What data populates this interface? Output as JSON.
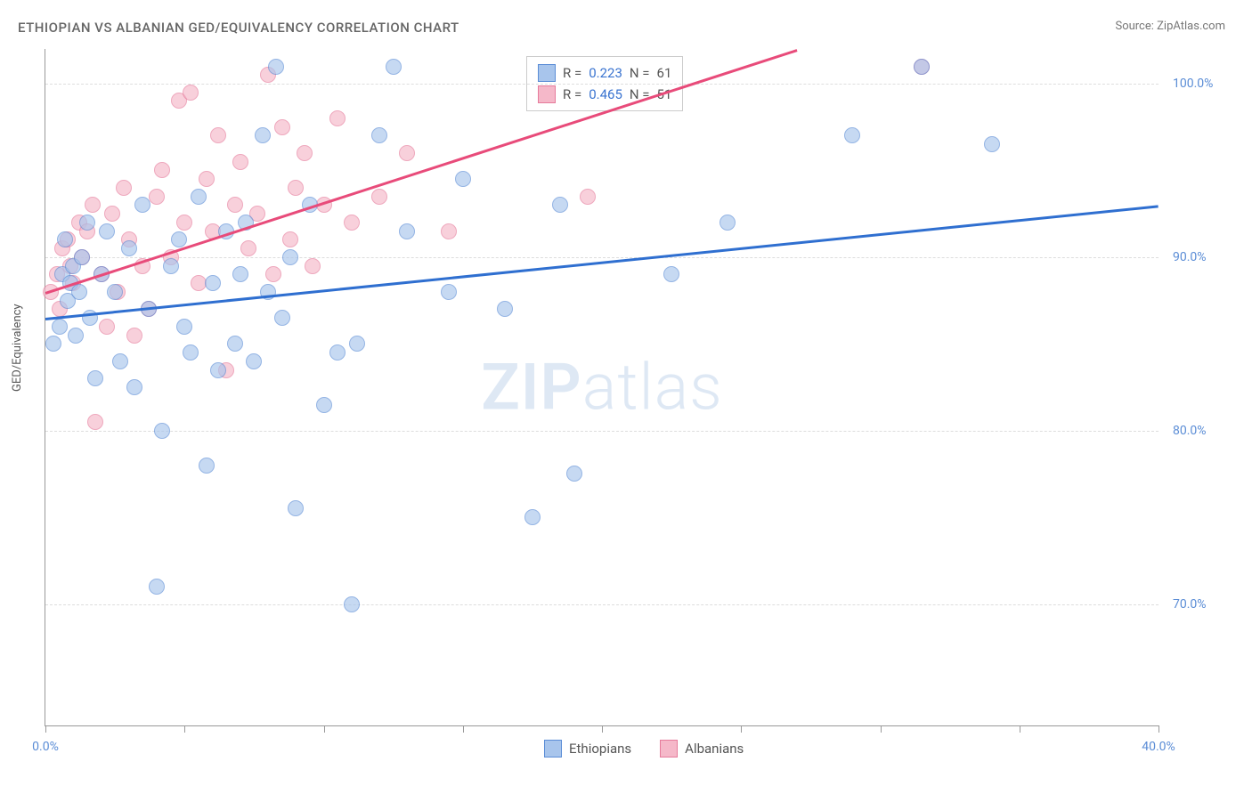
{
  "title": "ETHIOPIAN VS ALBANIAN GED/EQUIVALENCY CORRELATION CHART",
  "source": "Source: ZipAtlas.com",
  "ylabel": "GED/Equivalency",
  "watermark_bold": "ZIP",
  "watermark_light": "atlas",
  "xlim": [
    0,
    40
  ],
  "ylim": [
    63,
    102
  ],
  "xtick_positions": [
    0,
    5,
    10,
    15,
    20,
    25,
    30,
    35,
    40
  ],
  "xtick_labels": {
    "0": "0.0%",
    "40": "40.0%"
  },
  "ytick_positions": [
    70,
    80,
    90,
    100
  ],
  "ytick_labels": [
    "70.0%",
    "80.0%",
    "90.0%",
    "100.0%"
  ],
  "series": {
    "ethiopians": {
      "label": "Ethiopians",
      "fill": "#a8c5ec",
      "stroke": "#5b8dd6",
      "trend_color": "#2f6fd0",
      "trend": {
        "x1": 0,
        "y1": 86.5,
        "x2": 40,
        "y2": 93.0
      },
      "r": "0.223",
      "n": "61",
      "points": [
        [
          0.3,
          85.0
        ],
        [
          0.5,
          86.0
        ],
        [
          0.6,
          89.0
        ],
        [
          0.7,
          91.0
        ],
        [
          0.8,
          87.5
        ],
        [
          0.9,
          88.5
        ],
        [
          1.0,
          89.5
        ],
        [
          1.1,
          85.5
        ],
        [
          1.2,
          88.0
        ],
        [
          1.3,
          90.0
        ],
        [
          1.5,
          92.0
        ],
        [
          1.6,
          86.5
        ],
        [
          1.8,
          83.0
        ],
        [
          2.0,
          89.0
        ],
        [
          2.2,
          91.5
        ],
        [
          2.5,
          88.0
        ],
        [
          2.7,
          84.0
        ],
        [
          3.0,
          90.5
        ],
        [
          3.2,
          82.5
        ],
        [
          3.5,
          93.0
        ],
        [
          3.7,
          87.0
        ],
        [
          4.0,
          71.0
        ],
        [
          4.2,
          80.0
        ],
        [
          4.5,
          89.5
        ],
        [
          4.8,
          91.0
        ],
        [
          5.0,
          86.0
        ],
        [
          5.2,
          84.5
        ],
        [
          5.5,
          93.5
        ],
        [
          5.8,
          78.0
        ],
        [
          6.0,
          88.5
        ],
        [
          6.2,
          83.5
        ],
        [
          6.5,
          91.5
        ],
        [
          6.8,
          85.0
        ],
        [
          7.0,
          89.0
        ],
        [
          7.2,
          92.0
        ],
        [
          7.5,
          84.0
        ],
        [
          7.8,
          97.0
        ],
        [
          8.0,
          88.0
        ],
        [
          8.3,
          101.0
        ],
        [
          8.5,
          86.5
        ],
        [
          8.8,
          90.0
        ],
        [
          9.0,
          75.5
        ],
        [
          9.5,
          93.0
        ],
        [
          10.0,
          81.5
        ],
        [
          10.5,
          84.5
        ],
        [
          11.0,
          70.0
        ],
        [
          11.2,
          85.0
        ],
        [
          12.0,
          97.0
        ],
        [
          12.5,
          101.0
        ],
        [
          13.0,
          91.5
        ],
        [
          14.5,
          88.0
        ],
        [
          15.0,
          94.5
        ],
        [
          16.5,
          87.0
        ],
        [
          17.5,
          75.0
        ],
        [
          18.5,
          93.0
        ],
        [
          19.0,
          77.5
        ],
        [
          22.5,
          89.0
        ],
        [
          24.5,
          92.0
        ],
        [
          29.0,
          97.0
        ],
        [
          31.5,
          101.0
        ],
        [
          34.0,
          96.5
        ]
      ]
    },
    "albanians": {
      "label": "Albanians",
      "fill": "#f5b8c9",
      "stroke": "#e67a9b",
      "trend_color": "#e84b7a",
      "trend": {
        "x1": 0,
        "y1": 88.0,
        "x2": 27,
        "y2": 102.0
      },
      "r": "0.465",
      "n": "51",
      "points": [
        [
          0.2,
          88.0
        ],
        [
          0.4,
          89.0
        ],
        [
          0.5,
          87.0
        ],
        [
          0.6,
          90.5
        ],
        [
          0.8,
          91.0
        ],
        [
          0.9,
          89.5
        ],
        [
          1.0,
          88.5
        ],
        [
          1.2,
          92.0
        ],
        [
          1.3,
          90.0
        ],
        [
          1.5,
          91.5
        ],
        [
          1.7,
          93.0
        ],
        [
          1.8,
          80.5
        ],
        [
          2.0,
          89.0
        ],
        [
          2.2,
          86.0
        ],
        [
          2.4,
          92.5
        ],
        [
          2.6,
          88.0
        ],
        [
          2.8,
          94.0
        ],
        [
          3.0,
          91.0
        ],
        [
          3.2,
          85.5
        ],
        [
          3.5,
          89.5
        ],
        [
          3.7,
          87.0
        ],
        [
          4.0,
          93.5
        ],
        [
          4.2,
          95.0
        ],
        [
          4.5,
          90.0
        ],
        [
          4.8,
          99.0
        ],
        [
          5.0,
          92.0
        ],
        [
          5.2,
          99.5
        ],
        [
          5.5,
          88.5
        ],
        [
          5.8,
          94.5
        ],
        [
          6.0,
          91.5
        ],
        [
          6.2,
          97.0
        ],
        [
          6.5,
          83.5
        ],
        [
          6.8,
          93.0
        ],
        [
          7.0,
          95.5
        ],
        [
          7.3,
          90.5
        ],
        [
          7.6,
          92.5
        ],
        [
          8.0,
          100.5
        ],
        [
          8.2,
          89.0
        ],
        [
          8.5,
          97.5
        ],
        [
          8.8,
          91.0
        ],
        [
          9.0,
          94.0
        ],
        [
          9.3,
          96.0
        ],
        [
          9.6,
          89.5
        ],
        [
          10.0,
          93.0
        ],
        [
          10.5,
          98.0
        ],
        [
          11.0,
          92.0
        ],
        [
          12.0,
          93.5
        ],
        [
          13.0,
          96.0
        ],
        [
          14.5,
          91.5
        ],
        [
          19.5,
          93.5
        ],
        [
          31.5,
          101.0
        ]
      ]
    }
  },
  "legend_top_rows": [
    {
      "swatch_series": "ethiopians",
      "r_label": "R = ",
      "r_val": "0.223",
      "n_label": "   N = ",
      "n_val": "61"
    },
    {
      "swatch_series": "albanians",
      "r_label": "R = ",
      "r_val": "0.465",
      "n_label": "   N = ",
      "n_val": "51"
    }
  ],
  "legend_bottom": [
    {
      "series": "ethiopians",
      "label": "Ethiopians"
    },
    {
      "series": "albanians",
      "label": "Albanians"
    }
  ]
}
